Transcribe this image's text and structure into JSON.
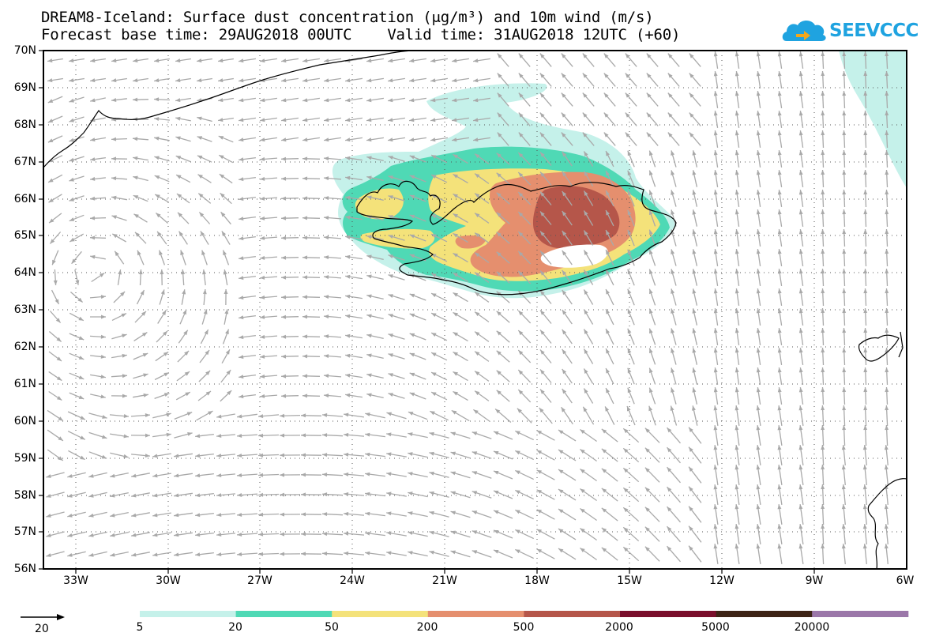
{
  "title": {
    "line1": "DREAM8-Iceland: Surface dust concentration (μg/m³) and 10m wind (m/s)",
    "line2": "Forecast base time: 29AUG2018 00UTC    Valid time: 31AUG2018 12UTC (+60)"
  },
  "logo": {
    "text": "SEEVCCC",
    "color": "#1fa3e0"
  },
  "map": {
    "lat_labels": [
      "70N",
      "69N",
      "68N",
      "67N",
      "66N",
      "65N",
      "64N",
      "63N",
      "62N",
      "61N",
      "60N",
      "59N",
      "58N",
      "57N",
      "56N"
    ],
    "lon_labels": [
      "33W",
      "30W",
      "27W",
      "24W",
      "21W",
      "18W",
      "15W",
      "12W",
      "9W",
      "6W"
    ],
    "wind_arrow_color": "#a9a9a9"
  },
  "legend": {
    "wind_reference": "20",
    "dust_labels": [
      "5",
      "20",
      "50",
      "200",
      "500",
      "2000",
      "5000",
      "20000"
    ],
    "dust_colors": [
      "#c5f1ea",
      "#4fd9b5",
      "#f4e27a",
      "#e58f6e",
      "#b5564a",
      "#7a0f2c",
      "#3d2416",
      "#9b77a9"
    ]
  },
  "colors": {
    "coastline": "#000000",
    "grid": "#555555"
  }
}
